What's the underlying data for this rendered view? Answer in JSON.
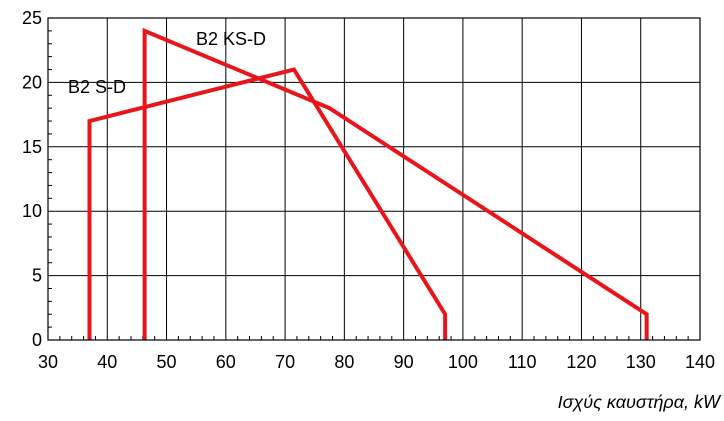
{
  "chart_data": {
    "type": "line",
    "title": "",
    "xlabel": "Ισχύς καυστήρα, kW",
    "ylabel": "",
    "xlim": [
      30,
      140
    ],
    "ylim": [
      0,
      25
    ],
    "xticks": [
      "30",
      "40",
      "50",
      "60",
      "70",
      "80",
      "90",
      "100",
      "110",
      "120",
      "130",
      "140"
    ],
    "yticks": [
      "0",
      "5",
      "10",
      "15",
      "20",
      "25"
    ],
    "grid": true,
    "line_color": "#e8151b",
    "series": [
      {
        "name": "B2 S-D",
        "x": [
          37,
          37,
          71.5,
          97,
          97
        ],
        "y": [
          0,
          17,
          21,
          2,
          0
        ]
      },
      {
        "name": "B2 KS-D",
        "x": [
          46.3,
          46.3,
          77.5,
          131,
          131
        ],
        "y": [
          0,
          24,
          18,
          2,
          0
        ]
      }
    ]
  }
}
